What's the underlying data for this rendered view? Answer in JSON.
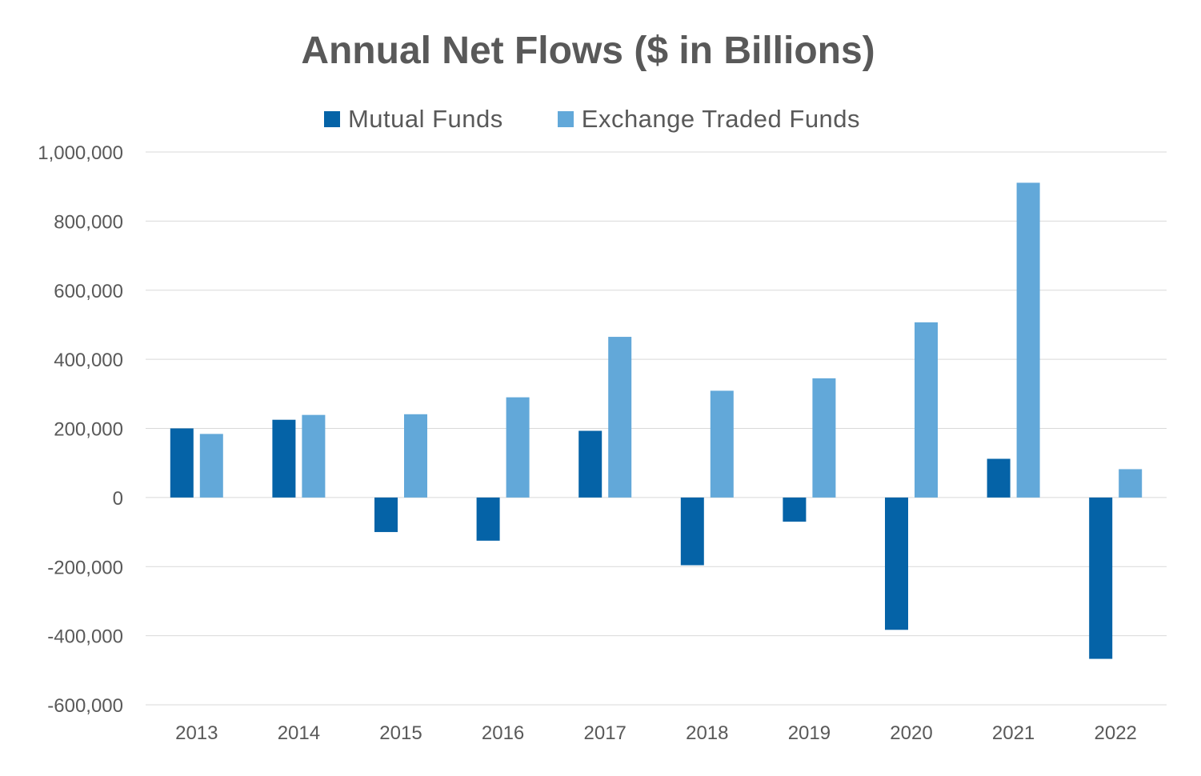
{
  "chart_data": {
    "type": "bar",
    "title": "Annual Net Flows ($ in Billions)",
    "xlabel": "",
    "ylabel": "",
    "categories": [
      "2013",
      "2014",
      "2015",
      "2016",
      "2017",
      "2018",
      "2019",
      "2020",
      "2021",
      "2022"
    ],
    "series": [
      {
        "name": "Mutual Funds",
        "color": "#0563A7",
        "values": [
          200000,
          225000,
          -100000,
          -125000,
          193000,
          -196000,
          -70000,
          -383000,
          112000,
          -467000
        ]
      },
      {
        "name": "Exchange Traded Funds",
        "color": "#62A8D9",
        "values": [
          184000,
          239000,
          241000,
          290000,
          465000,
          309000,
          345000,
          507000,
          911000,
          82000
        ]
      }
    ],
    "ylim": [
      -600000,
      1000000
    ],
    "yticks": [
      1000000,
      800000,
      600000,
      400000,
      200000,
      0,
      -200000,
      -400000,
      -600000
    ],
    "ytick_labels": [
      "1,000,000",
      "800,000",
      "600,000",
      "400,000",
      "200,000",
      "0",
      "-200,000",
      "-400,000",
      "-600,000"
    ],
    "grid": true,
    "legend_position": "top-center",
    "gridline_color": "#D9D9D9"
  }
}
